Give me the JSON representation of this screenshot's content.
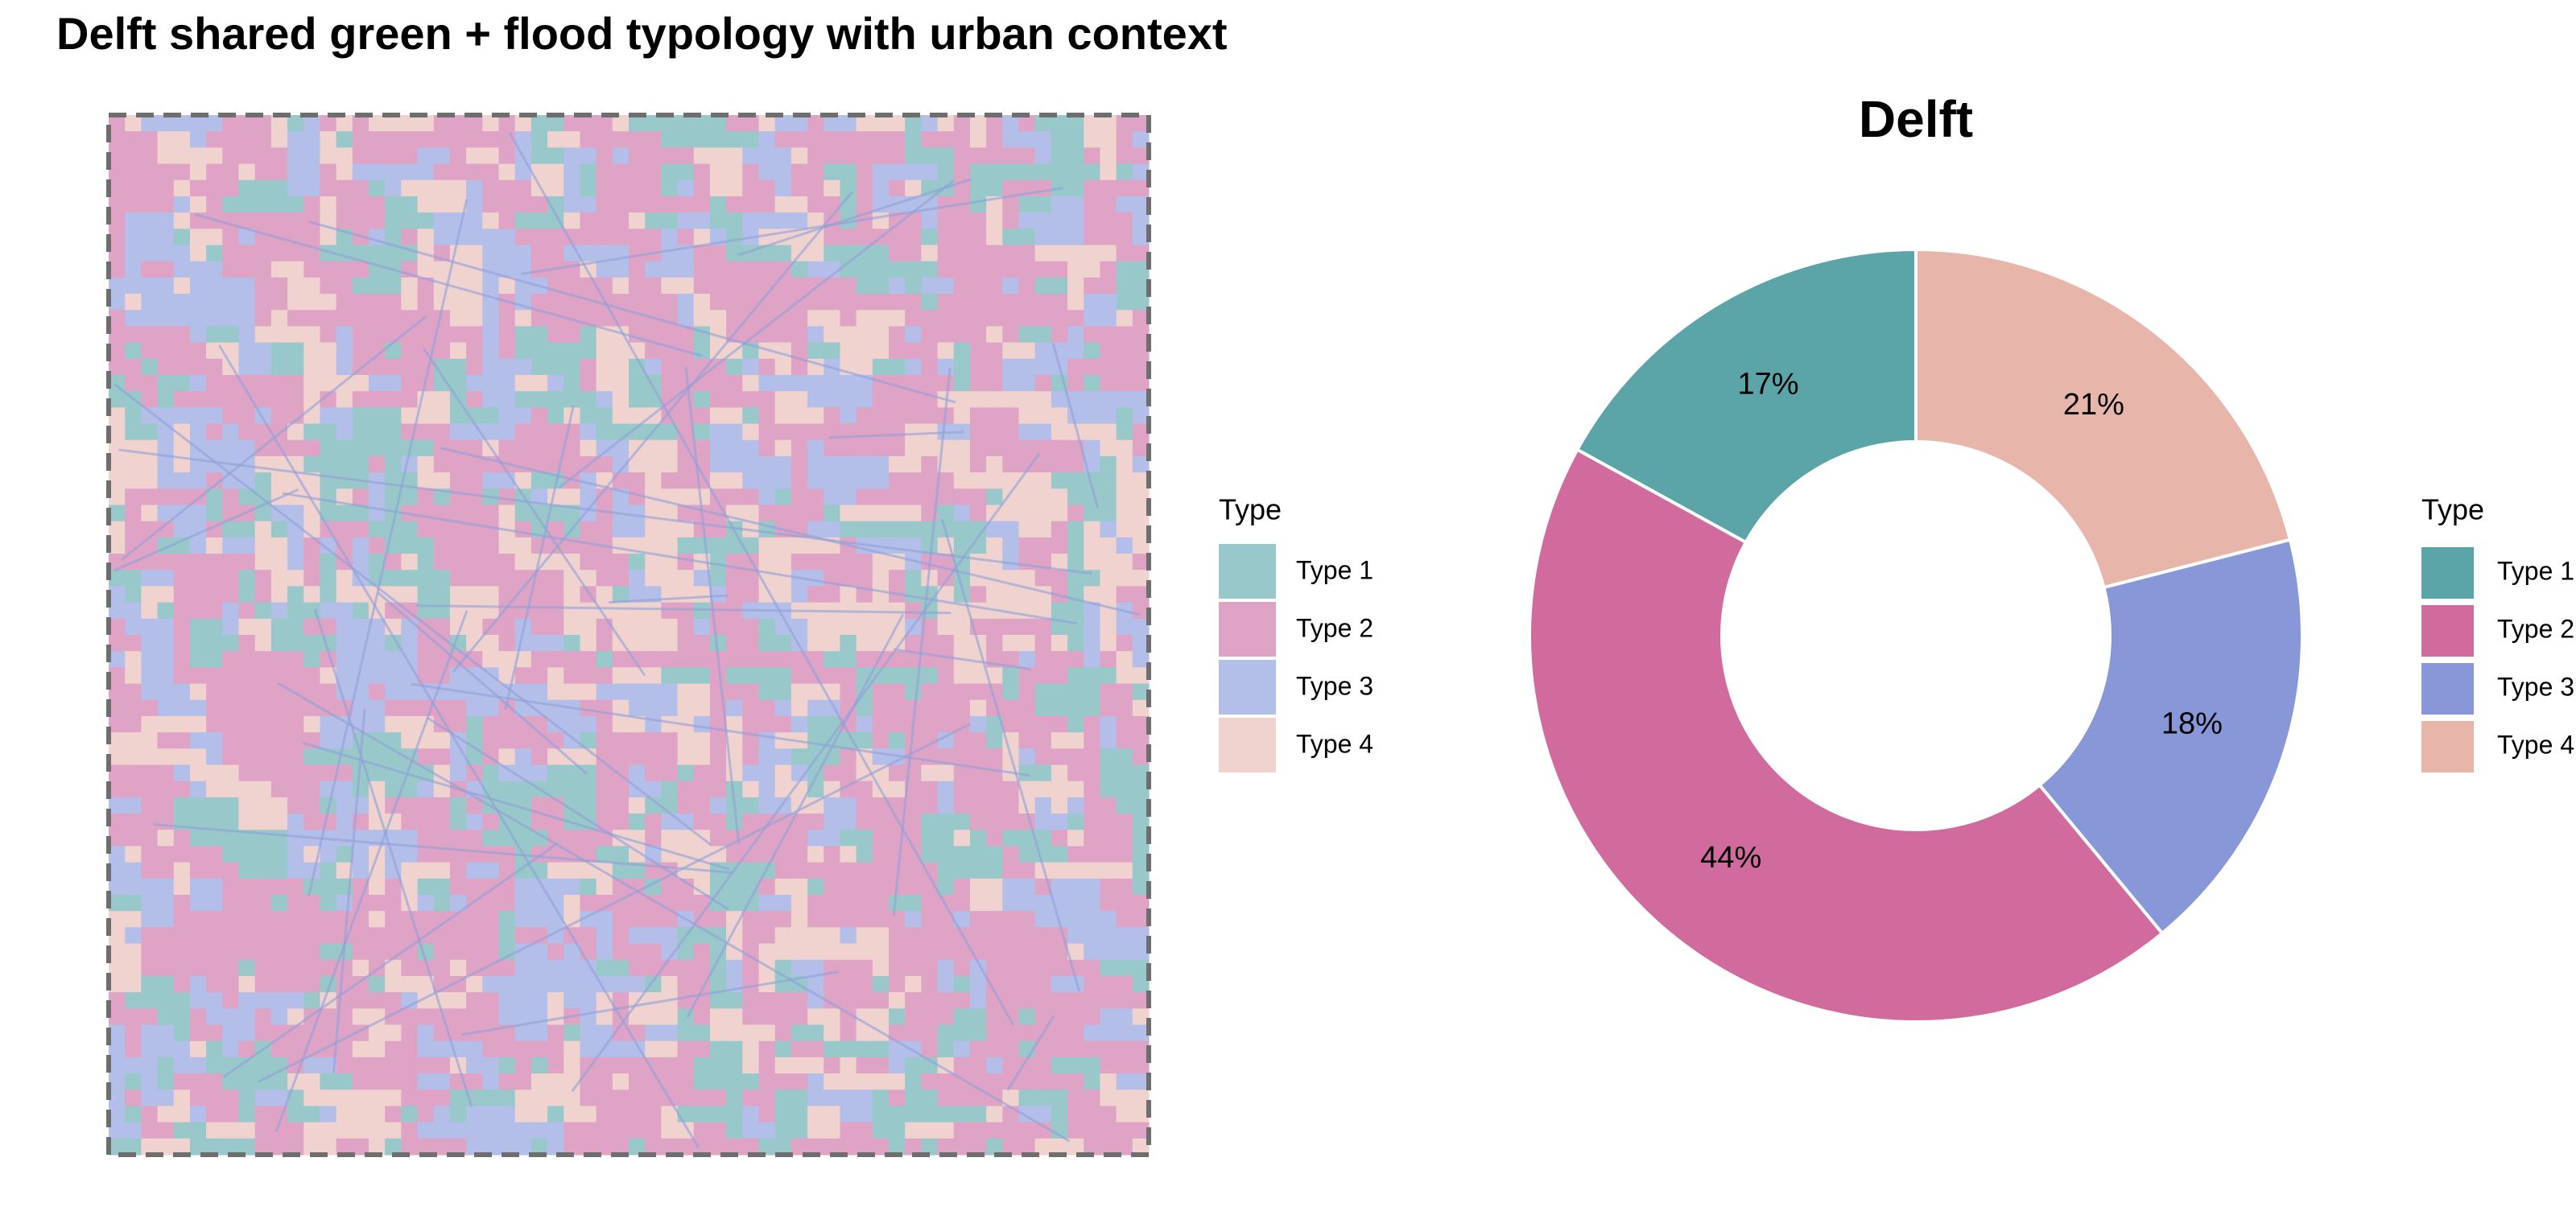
{
  "title": "Delft shared green + flood typology with urban context",
  "map": {
    "legend_title": "Type",
    "legend": [
      "Type 1",
      "Type 2",
      "Type 3",
      "Type 4"
    ],
    "colors": [
      "#98c8c9",
      "#dfa3c5",
      "#b3bee9",
      "#f0d3cf"
    ]
  },
  "chart_data": {
    "type": "donut",
    "title": "Delft",
    "legend_title": "Type",
    "categories": [
      "Type 1",
      "Type 2",
      "Type 3",
      "Type 4"
    ],
    "values": [
      17,
      44,
      18,
      21
    ],
    "value_labels": [
      "17%",
      "44%",
      "18%",
      "21%"
    ],
    "colors": [
      "#5ba5a8",
      "#d16b9e",
      "#8897d8",
      "#e8b5ab"
    ]
  }
}
